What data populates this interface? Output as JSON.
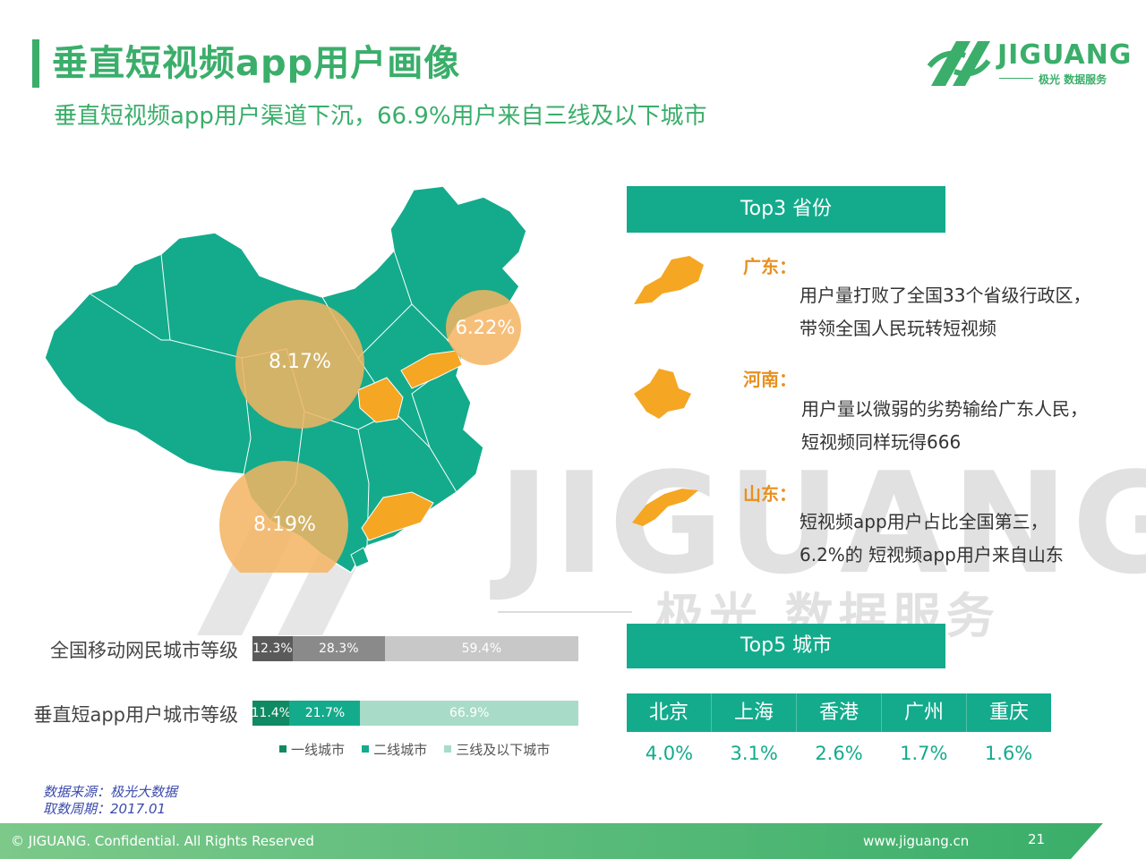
{
  "header": {
    "title": "垂直短视频app用户画像",
    "subtitle": "垂直短视频app用户渠道下沉，66.9%用户来自三线及以下城市"
  },
  "logo": {
    "name": "JIGUANG",
    "tagline": "极光 数据服务"
  },
  "watermark": {
    "word": "JIGUANG",
    "cn": "极光 数据服务"
  },
  "map": {
    "bubbles": [
      "8.17%",
      "6.22%",
      "8.19%"
    ]
  },
  "top3": {
    "heading": "Top3 省份",
    "provinces": [
      {
        "name": "广东：",
        "lines": [
          "用户量打败了全国33个省级行政区，",
          "带领全国人民玩转短视频"
        ]
      },
      {
        "name": "河南：",
        "lines": [
          "用户量以微弱的劣势输给广东人民，",
          "短视频同样玩得666"
        ]
      },
      {
        "name": "山东：",
        "lines": [
          "短视频app用户占比全国第三，",
          "6.2%的 短视频app用户来自山东"
        ]
      }
    ]
  },
  "top5": {
    "heading": "Top5 城市",
    "cities": [
      "北京",
      "上海",
      "香港",
      "广州",
      "重庆"
    ],
    "values": [
      "4.0%",
      "3.1%",
      "2.6%",
      "1.7%",
      "1.6%"
    ]
  },
  "colors": {
    "brand_green": "#3aae6a",
    "teal": "#13ab8c",
    "orange": "#e8901f",
    "bubble": "#f5b462"
  },
  "chart_data": {
    "type": "bar",
    "orientation": "horizontal-stacked-100",
    "categories": [
      "全国移动网民城市等级",
      "垂直短app用户城市等级"
    ],
    "series": [
      {
        "name": "一线城市",
        "values": [
          12.3,
          11.4
        ],
        "labels": [
          "12.3%",
          "11.4%"
        ]
      },
      {
        "name": "二线城市",
        "values": [
          28.3,
          21.7
        ],
        "labels": [
          "28.3%",
          "21.7%"
        ]
      },
      {
        "name": "三线及以下城市",
        "values": [
          59.4,
          66.9
        ],
        "labels": [
          "59.4%",
          "66.9%"
        ]
      }
    ],
    "colors": {
      "row1": [
        "#5a5a5a",
        "#8a8a8a",
        "#c8c8c8"
      ],
      "row2": [
        "#0f8a63",
        "#13ab8c",
        "#a8dcc8"
      ]
    },
    "legend_colors": [
      "#0f8a63",
      "#13ab8c",
      "#a8dcc8"
    ],
    "legend_position": "bottom"
  },
  "source": {
    "line1": "数据来源：极光大数据",
    "line2": "取数周期：2017.01"
  },
  "footer": {
    "left": "© JIGUANG. Confidential. All Rights Reserved",
    "url": "www.jiguang.cn",
    "page": "21"
  }
}
